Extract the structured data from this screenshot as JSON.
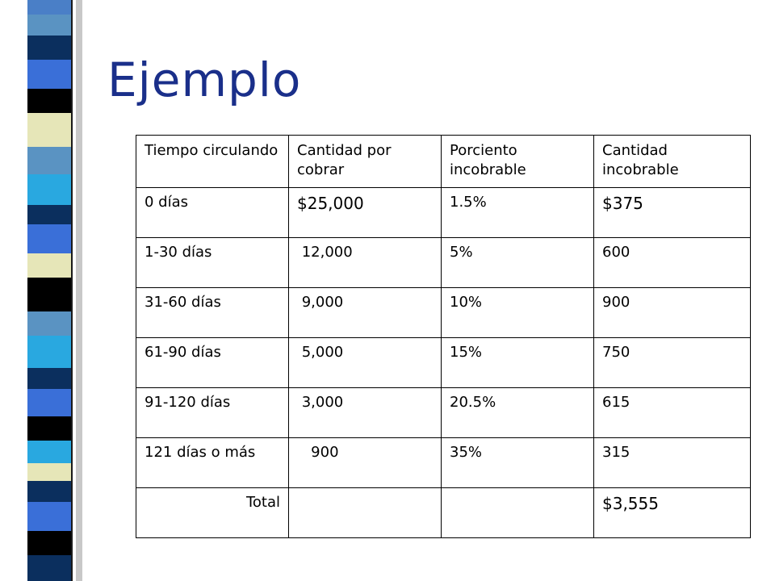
{
  "title": "Ejemplo",
  "colors": {
    "title": "#1a2f8a",
    "stripes": [
      "#4a7fc7",
      "#0b2f5e",
      "#3a6fd8",
      "#000000",
      "#e6e6b8",
      "#5a93c2",
      "#1f5fb0",
      "#29a8e0"
    ]
  },
  "table": {
    "headers": [
      "Tiempo circulando",
      "Cantidad por cobrar",
      "Porciento incobrable",
      "Cantidad incobrable"
    ],
    "rows": [
      [
        "0 días",
        "$25,000",
        "1.5%",
        "$375"
      ],
      [
        "1-30 días",
        " 12,000",
        "5%",
        "600"
      ],
      [
        "31-60 días",
        " 9,000",
        "10%",
        "900"
      ],
      [
        "61-90 días",
        " 5,000",
        "15%",
        "750"
      ],
      [
        "91-120 días",
        " 3,000",
        "20.5%",
        "615"
      ],
      [
        "121 días o más",
        "   900",
        "35%",
        "315"
      ],
      [
        "Total",
        "",
        "",
        "$3,555"
      ]
    ]
  }
}
